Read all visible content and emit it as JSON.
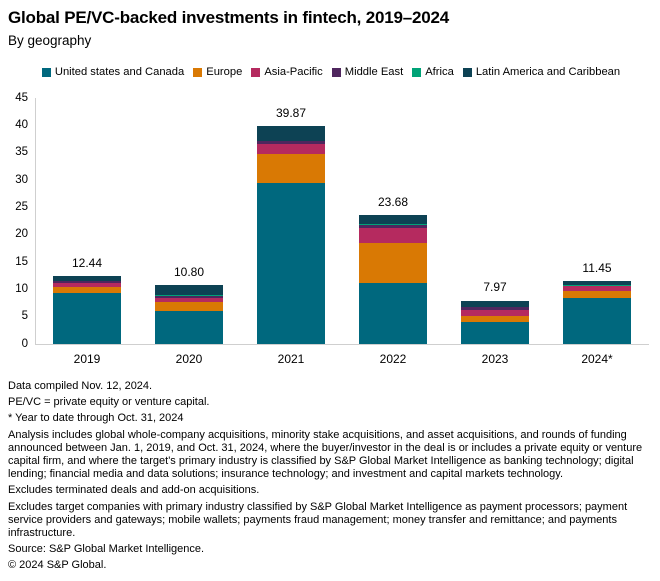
{
  "header": {
    "title": "Global PE/VC-backed investments in fintech, 2019–2024",
    "subtitle": "By geography"
  },
  "chart_data": {
    "type": "bar",
    "stacked": true,
    "title": "Global PE/VC-backed investments in fintech, 2019–2024",
    "subtitle": "By geography",
    "categories": [
      "2019",
      "2020",
      "2021",
      "2022",
      "2023",
      "2024*"
    ],
    "series": [
      {
        "name": "United states and Canada",
        "color": "#00687e",
        "values": [
          9.3,
          6.1,
          29.47,
          11.18,
          4.07,
          8.5
        ]
      },
      {
        "name": "Europe",
        "color": "#d97904",
        "values": [
          1.1,
          1.65,
          5.3,
          7.3,
          1.1,
          1.25
        ]
      },
      {
        "name": "Asia-Pacific",
        "color": "#b52a5f",
        "values": [
          0.85,
          0.75,
          1.8,
          2.8,
          1.1,
          0.85
        ]
      },
      {
        "name": "Middle East",
        "color": "#4f265e",
        "values": [
          0.25,
          0.35,
          0.55,
          0.55,
          0.55,
          0.1
        ]
      },
      {
        "name": "Africa",
        "color": "#00a377",
        "values": [
          0.04,
          0.05,
          0.05,
          0.05,
          0.05,
          0.02
        ]
      },
      {
        "name": "Latin America and Caribbean",
        "color": "#0d4254",
        "values": [
          0.9,
          1.9,
          2.7,
          1.8,
          1.1,
          0.73
        ]
      }
    ],
    "totals": [
      "12.44",
      "10.80",
      "39.87",
      "23.68",
      "7.97",
      "11.45"
    ],
    "xlabel": "",
    "ylabel": "",
    "ylim": [
      0,
      45
    ],
    "ytick_step": 5,
    "grid": false,
    "legend_position": "top",
    "axis_color": "#cfcfcf"
  },
  "footnotes": [
    "Data compiled Nov. 12, 2024.",
    "PE/VC = private equity or venture capital.",
    "* Year to date through Oct. 31, 2024",
    "Analysis includes global whole-company acquisitions, minority stake acquisitions, and asset acquisitions, and rounds of funding announced between Jan. 1, 2019, and Oct. 31, 2024, where the buyer/investor in the deal is or includes a private equity or venture capital firm, and where the target's primary industry is classified by S&P Global Market Intelligence as banking technology; digital lending; financial media and data solutions; insurance technology; and investment and capital markets technology.",
    "Excludes terminated deals and add-on acquisitions.",
    "Excludes target companies with primary industry classified by S&P Global Market Intelligence as payment processors; payment service providers and gateways; mobile wallets; payments fraud management; money transfer and remittance; and payments infrastructure.",
    "Source: S&P Global Market Intelligence.",
    "© 2024 S&P Global."
  ]
}
